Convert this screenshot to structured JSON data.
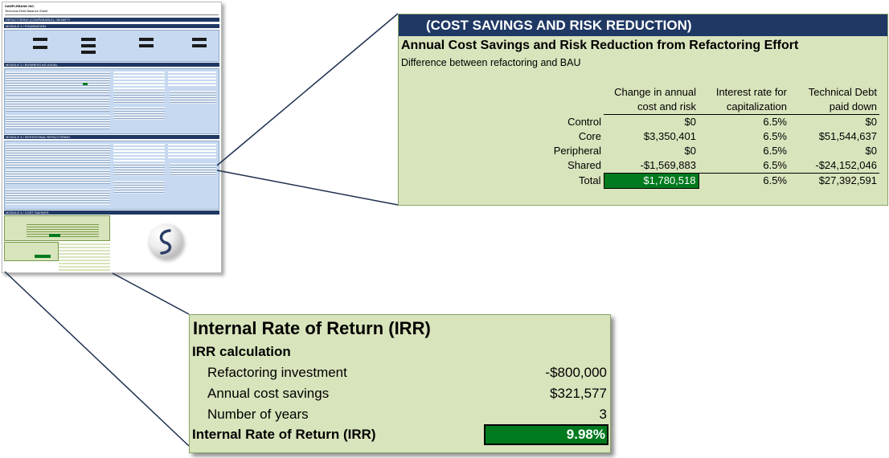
{
  "thumbnail": {
    "company": "SAMPLEBANK INC.",
    "sheet_title": "Technical Debt Balance Sheet",
    "section_refactoring": "REFACTORING (COMPARABLE) / BENEFIT",
    "section_model": "MODULE 1 / FOUNDATION",
    "section_baseline": "MODULE 2 / BUSINESS AS USUAL",
    "section_refactor": "MODULE 3 / INTENTIONAL REFACTORING",
    "section_savings": "MODULE 4 / COST SAVINGS"
  },
  "cost_savings": {
    "header": "(COST SAVINGS AND RISK REDUCTION)",
    "title": "Annual Cost Savings and Risk Reduction from Refactoring Effort",
    "subtitle": "Difference between refactoring and BAU",
    "columns": {
      "c1_line1": "Change in annual",
      "c1_line2": "cost and risk",
      "c2_line1": "Interest rate for",
      "c2_line2": "capitalization",
      "c3_line1": "Technical Debt",
      "c3_line2": "paid down"
    },
    "rows": [
      {
        "label": "Control",
        "change": "$0",
        "rate": "6.5%",
        "debt": "$0"
      },
      {
        "label": "Core",
        "change": "$3,350,401",
        "rate": "6.5%",
        "debt": "$51,544,637"
      },
      {
        "label": "Peripheral",
        "change": "$0",
        "rate": "6.5%",
        "debt": "$0"
      },
      {
        "label": "Shared",
        "change": "-$1,569,883",
        "rate": "6.5%",
        "debt": "-$24,152,046"
      }
    ],
    "total": {
      "label": "Total",
      "change": "$1,780,518",
      "rate": "6.5%",
      "debt": "$27,392,591"
    }
  },
  "irr": {
    "title": "Internal Rate of Return (IRR)",
    "subtitle": "IRR calculation",
    "investment_label": "Refactoring investment",
    "investment_value": "-$800,000",
    "savings_label": "Annual cost savings",
    "savings_value": "$321,577",
    "years_label": "Number of years",
    "years_value": "3",
    "result_label": "Internal Rate of Return (IRR)",
    "result_value": "9.98%"
  },
  "colors": {
    "header_navy": "#1f3864",
    "panel_green": "#d8e4bc",
    "highlight_green": "#007a1e",
    "panel_blue": "#c6d9f0"
  }
}
